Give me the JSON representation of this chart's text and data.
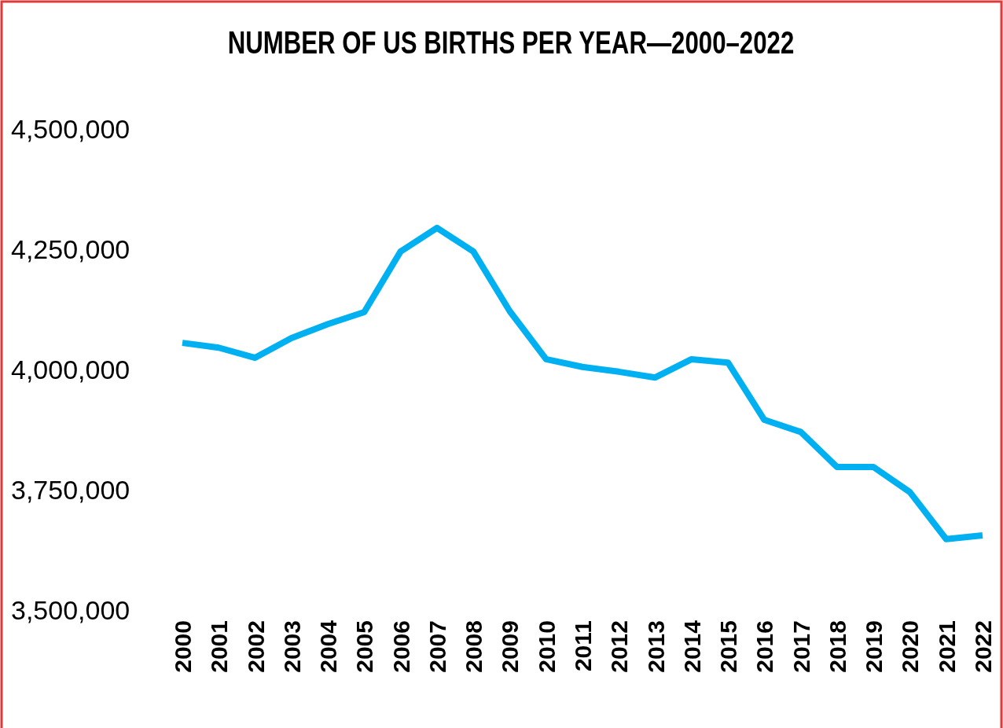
{
  "chart_data": {
    "type": "line",
    "title": "NUMBER OF US BIRTHS PER YEAR—2000–2022",
    "categories": [
      "2000",
      "2001",
      "2002",
      "2003",
      "2004",
      "2005",
      "2006",
      "2007",
      "2008",
      "2009",
      "2010",
      "2011",
      "2012",
      "2013",
      "2014",
      "2015",
      "2016",
      "2017",
      "2018",
      "2019",
      "2020",
      "2021",
      "2022"
    ],
    "series": [
      {
        "color": "#00b0f0",
        "values": [
          4057000,
          4047000,
          4026000,
          4067000,
          4096000,
          4121000,
          4247000,
          4296000,
          4247000,
          4123000,
          4023000,
          4007000,
          3997000,
          3985000,
          4023000,
          4016000,
          3897000,
          3872000,
          3799000,
          3799000,
          3747000,
          3649000,
          3657000
        ]
      }
    ],
    "ylim": [
      3500000,
      4500000
    ],
    "yticks": [
      {
        "value": 3500000,
        "label": "3,500,000"
      },
      {
        "value": 3750000,
        "label": "3,750,000"
      },
      {
        "value": 4000000,
        "label": "4,000,000"
      },
      {
        "value": 4250000,
        "label": "4,250,000"
      },
      {
        "value": 4500000,
        "label": "4,500,000"
      }
    ],
    "grid": false,
    "marker": "none",
    "line_style": "solid"
  }
}
